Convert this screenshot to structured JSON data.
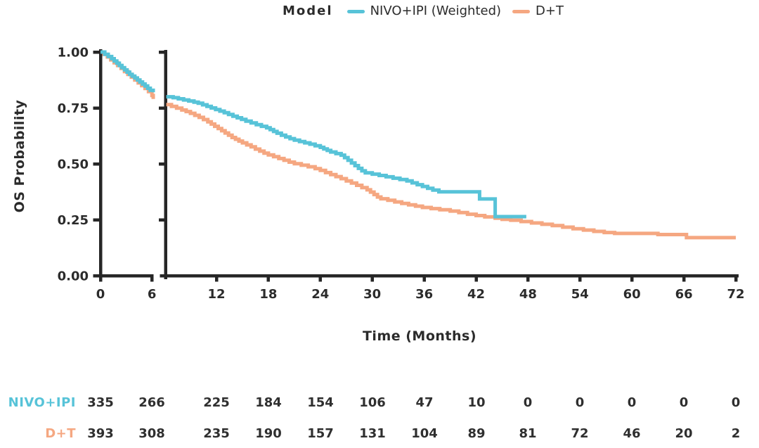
{
  "legend": {
    "title": "Model",
    "position": "top",
    "series": [
      {
        "label": "NIVO+IPI (Weighted)",
        "color": "#57C3D8"
      },
      {
        "label": "D+T",
        "color": "#F5A781"
      }
    ]
  },
  "colors": {
    "ink": "#2b2b2b",
    "axis": "#262626",
    "nivo": "#57C3D8",
    "dt": "#F5A781"
  },
  "chart_data": {
    "type": "line",
    "subtype": "kaplan-meier-step",
    "title": "",
    "xlabel": "Time (Months)",
    "ylabel": "OS Probability",
    "grid": "off",
    "legend_position": "top",
    "x_axis": {
      "ticks": [
        0,
        6,
        12,
        18,
        24,
        30,
        36,
        42,
        48,
        54,
        60,
        66,
        72
      ],
      "break_between": [
        6,
        7
      ],
      "range": [
        0,
        72
      ]
    },
    "y_axis": {
      "ticks": [
        1.0,
        0.75,
        0.5,
        0.25,
        0.0
      ],
      "tick_labels": [
        "1.00",
        "0.75",
        "0.50",
        "0.25",
        "0.00"
      ],
      "range": [
        0,
        1
      ]
    },
    "series": [
      {
        "name": "NIVO+IPI (Weighted)",
        "color": "#57C3D8",
        "points_before_break": [
          [
            0,
            1.0
          ],
          [
            0.5,
            0.99
          ],
          [
            0.9,
            0.98
          ],
          [
            1.3,
            0.97
          ],
          [
            1.6,
            0.96
          ],
          [
            1.9,
            0.95
          ],
          [
            2.2,
            0.94
          ],
          [
            2.5,
            0.93
          ],
          [
            2.8,
            0.92
          ],
          [
            3.1,
            0.91
          ],
          [
            3.4,
            0.9
          ],
          [
            3.7,
            0.892
          ],
          [
            4.0,
            0.884
          ],
          [
            4.3,
            0.875
          ],
          [
            4.6,
            0.866
          ],
          [
            4.9,
            0.857
          ],
          [
            5.2,
            0.848
          ],
          [
            5.5,
            0.838
          ],
          [
            5.8,
            0.829
          ],
          [
            6.15,
            0.82
          ]
        ],
        "points_after_break": [
          [
            6.2,
            0.8
          ],
          [
            7.0,
            0.796
          ],
          [
            7.6,
            0.791
          ],
          [
            8.2,
            0.786
          ],
          [
            8.8,
            0.781
          ],
          [
            9.4,
            0.776
          ],
          [
            9.9,
            0.771
          ],
          [
            10.4,
            0.764
          ],
          [
            10.9,
            0.757
          ],
          [
            11.4,
            0.75
          ],
          [
            11.9,
            0.743
          ],
          [
            12.4,
            0.736
          ],
          [
            12.9,
            0.729
          ],
          [
            13.4,
            0.721
          ],
          [
            13.9,
            0.713
          ],
          [
            14.4,
            0.706
          ],
          [
            14.9,
            0.699
          ],
          [
            15.4,
            0.691
          ],
          [
            16.0,
            0.683
          ],
          [
            16.6,
            0.675
          ],
          [
            17.2,
            0.668
          ],
          [
            17.8,
            0.661
          ],
          [
            18.2,
            0.653
          ],
          [
            18.6,
            0.645
          ],
          [
            19.0,
            0.637
          ],
          [
            19.5,
            0.628
          ],
          [
            20.0,
            0.62
          ],
          [
            20.5,
            0.613
          ],
          [
            21.0,
            0.606
          ],
          [
            21.6,
            0.6
          ],
          [
            22.2,
            0.594
          ],
          [
            22.8,
            0.588
          ],
          [
            23.4,
            0.581
          ],
          [
            24.0,
            0.574
          ],
          [
            24.4,
            0.567
          ],
          [
            24.8,
            0.56
          ],
          [
            25.2,
            0.553
          ],
          [
            25.8,
            0.546
          ],
          [
            26.4,
            0.539
          ],
          [
            26.8,
            0.528
          ],
          [
            27.2,
            0.516
          ],
          [
            27.6,
            0.504
          ],
          [
            28.0,
            0.492
          ],
          [
            28.4,
            0.48
          ],
          [
            28.8,
            0.469
          ],
          [
            29.2,
            0.46
          ],
          [
            30.0,
            0.454
          ],
          [
            30.8,
            0.448
          ],
          [
            31.6,
            0.442
          ],
          [
            32.4,
            0.436
          ],
          [
            33.2,
            0.43
          ],
          [
            34.0,
            0.424
          ],
          [
            34.6,
            0.415
          ],
          [
            35.2,
            0.407
          ],
          [
            35.8,
            0.399
          ],
          [
            36.4,
            0.391
          ],
          [
            37.0,
            0.383
          ],
          [
            37.7,
            0.375
          ],
          [
            42.4,
            0.343
          ],
          [
            44.2,
            0.264
          ],
          [
            47.8,
            0.264
          ]
        ]
      },
      {
        "name": "D+T",
        "color": "#F5A781",
        "points_before_break": [
          [
            0,
            1.0
          ],
          [
            0.4,
            0.99
          ],
          [
            0.8,
            0.978
          ],
          [
            1.2,
            0.965
          ],
          [
            1.6,
            0.952
          ],
          [
            2.0,
            0.94
          ],
          [
            2.4,
            0.927
          ],
          [
            2.8,
            0.913
          ],
          [
            3.2,
            0.9
          ],
          [
            3.6,
            0.888
          ],
          [
            4.0,
            0.875
          ],
          [
            4.4,
            0.862
          ],
          [
            4.8,
            0.85
          ],
          [
            5.2,
            0.837
          ],
          [
            5.6,
            0.823
          ],
          [
            6.0,
            0.806
          ],
          [
            6.15,
            0.79
          ]
        ],
        "points_after_break": [
          [
            6.2,
            0.765
          ],
          [
            6.8,
            0.757
          ],
          [
            7.4,
            0.749
          ],
          [
            8.0,
            0.741
          ],
          [
            8.5,
            0.734
          ],
          [
            9.0,
            0.726
          ],
          [
            9.5,
            0.717
          ],
          [
            10.0,
            0.708
          ],
          [
            10.5,
            0.698
          ],
          [
            11.0,
            0.688
          ],
          [
            11.4,
            0.678
          ],
          [
            11.8,
            0.668
          ],
          [
            12.2,
            0.658
          ],
          [
            12.6,
            0.648
          ],
          [
            13.0,
            0.638
          ],
          [
            13.4,
            0.628
          ],
          [
            13.8,
            0.618
          ],
          [
            14.2,
            0.61
          ],
          [
            14.6,
            0.602
          ],
          [
            15.0,
            0.594
          ],
          [
            15.5,
            0.585
          ],
          [
            16.0,
            0.576
          ],
          [
            16.5,
            0.566
          ],
          [
            17.0,
            0.557
          ],
          [
            17.5,
            0.548
          ],
          [
            18.0,
            0.54
          ],
          [
            18.6,
            0.532
          ],
          [
            19.2,
            0.524
          ],
          [
            19.8,
            0.516
          ],
          [
            20.4,
            0.508
          ],
          [
            21.0,
            0.501
          ],
          [
            21.8,
            0.494
          ],
          [
            22.6,
            0.487
          ],
          [
            23.4,
            0.479
          ],
          [
            24.0,
            0.471
          ],
          [
            24.6,
            0.461
          ],
          [
            25.2,
            0.452
          ],
          [
            25.8,
            0.443
          ],
          [
            26.4,
            0.434
          ],
          [
            27.0,
            0.424
          ],
          [
            27.6,
            0.414
          ],
          [
            28.2,
            0.404
          ],
          [
            28.8,
            0.394
          ],
          [
            29.4,
            0.384
          ],
          [
            29.8,
            0.374
          ],
          [
            30.2,
            0.363
          ],
          [
            30.6,
            0.352
          ],
          [
            31.0,
            0.344
          ],
          [
            31.8,
            0.337
          ],
          [
            32.6,
            0.33
          ],
          [
            33.4,
            0.323
          ],
          [
            34.2,
            0.317
          ],
          [
            35.0,
            0.311
          ],
          [
            35.8,
            0.305
          ],
          [
            36.8,
            0.3
          ],
          [
            37.8,
            0.295
          ],
          [
            39.0,
            0.289
          ],
          [
            40.0,
            0.282
          ],
          [
            41.0,
            0.275
          ],
          [
            42.0,
            0.269
          ],
          [
            43.0,
            0.263
          ],
          [
            44.2,
            0.257
          ],
          [
            45.0,
            0.252
          ],
          [
            46.0,
            0.248
          ],
          [
            47.2,
            0.242
          ],
          [
            48.4,
            0.236
          ],
          [
            49.6,
            0.23
          ],
          [
            50.8,
            0.224
          ],
          [
            52.0,
            0.217
          ],
          [
            53.2,
            0.21
          ],
          [
            54.4,
            0.204
          ],
          [
            55.6,
            0.198
          ],
          [
            56.8,
            0.193
          ],
          [
            58.0,
            0.189
          ],
          [
            63.0,
            0.184
          ],
          [
            66.3,
            0.17
          ],
          [
            72,
            0.17
          ]
        ]
      }
    ],
    "risk_table": {
      "times": [
        0,
        6,
        12,
        18,
        24,
        30,
        36,
        42,
        48,
        54,
        60,
        66,
        72
      ],
      "rows": [
        {
          "name": "NIVO+IPI",
          "color": "#57C3D8",
          "values": [
            335,
            266,
            225,
            184,
            154,
            106,
            47,
            10,
            0,
            0,
            0,
            0,
            0
          ]
        },
        {
          "name": "D+T",
          "color": "#F5A781",
          "values": [
            393,
            308,
            235,
            190,
            157,
            131,
            104,
            89,
            81,
            72,
            46,
            20,
            2
          ]
        }
      ]
    }
  }
}
